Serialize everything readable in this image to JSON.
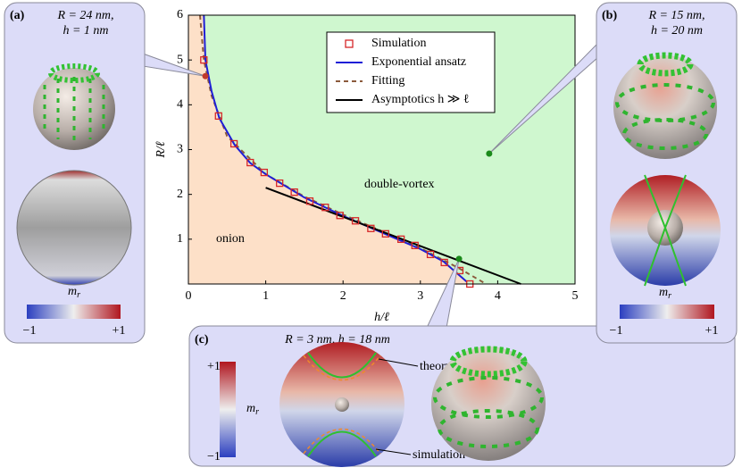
{
  "chart_data": {
    "type": "line",
    "x_label": "h/ℓ",
    "y_label": "R/ℓ",
    "xlim": [
      0,
      5
    ],
    "ylim": [
      0,
      6
    ],
    "xticks": [
      0,
      1,
      2,
      3,
      4,
      5
    ],
    "yticks": [
      1,
      2,
      3,
      4,
      5,
      6
    ],
    "regions": [
      "onion",
      "double-vortex"
    ],
    "region_colors": [
      "#fde0c8",
      "#cff7cf"
    ],
    "series": [
      {
        "name": "Simulation",
        "style": "marker",
        "color": "#d62728",
        "x": [
          0.2,
          0.39,
          0.59,
          0.8,
          0.98,
          1.18,
          1.37,
          1.57,
          1.77,
          1.96,
          2.16,
          2.36,
          2.55,
          2.75,
          2.93,
          3.13,
          3.31,
          3.51,
          3.64
        ],
        "values": [
          5.0,
          3.75,
          3.13,
          2.71,
          2.49,
          2.25,
          2.05,
          1.85,
          1.71,
          1.53,
          1.41,
          1.24,
          1.12,
          1.0,
          0.86,
          0.66,
          0.48,
          0.3,
          0.0
        ]
      },
      {
        "name": "Exponential ansatz",
        "style": "solid",
        "color": "#1f1fd6",
        "x": [
          0.2,
          0.22,
          0.3,
          0.4,
          0.6,
          0.8,
          1.0,
          1.5,
          2.0,
          2.5,
          3.0,
          3.3,
          3.6
        ],
        "values": [
          6.0,
          5.0,
          4.3,
          3.7,
          3.1,
          2.7,
          2.45,
          1.93,
          1.52,
          1.15,
          0.78,
          0.5,
          0.05
        ]
      },
      {
        "name": "Fitting",
        "style": "dashed",
        "color": "#8b5a3c",
        "x": [
          0.15,
          0.2,
          0.3,
          0.5,
          1.0,
          1.5,
          2.0,
          2.5,
          3.0,
          3.5,
          3.85
        ],
        "values": [
          6.0,
          5.0,
          4.2,
          3.3,
          2.45,
          1.95,
          1.55,
          1.18,
          0.8,
          0.35,
          0.0
        ]
      },
      {
        "name": "Asymptotics h ≫ ℓ",
        "style": "solid",
        "color": "#000000",
        "x": [
          1.0,
          4.3
        ],
        "values": [
          2.15,
          0.0
        ]
      }
    ],
    "markers": [
      {
        "x": 0.22,
        "y": 4.64,
        "color": "#c0392b"
      },
      {
        "x": 3.89,
        "y": 2.91,
        "color": "#1a8a1a"
      },
      {
        "x": 3.5,
        "y": 0.56,
        "color": "#1a8a1a"
      }
    ]
  },
  "panels": [
    {
      "label": "(a)",
      "lines": [
        "R = 24 nm,",
        "h = 1 nm"
      ],
      "symbol": {
        "base": "m",
        "sub": "r"
      },
      "scale": [
        "−1",
        "+1"
      ]
    },
    {
      "label": "(b)",
      "lines": [
        "R = 15 nm,",
        "h = 20 nm"
      ],
      "symbol": {
        "base": "m",
        "sub": "r"
      },
      "scale": [
        "−1",
        "+1"
      ]
    },
    {
      "label": "(c)",
      "lines": [
        "R = 3 nm, h = 18 nm"
      ],
      "symbol": {
        "base": "m",
        "sub": "r"
      },
      "scale": [
        "−1",
        "+1"
      ],
      "notes": [
        "theory",
        "simulation"
      ]
    }
  ]
}
